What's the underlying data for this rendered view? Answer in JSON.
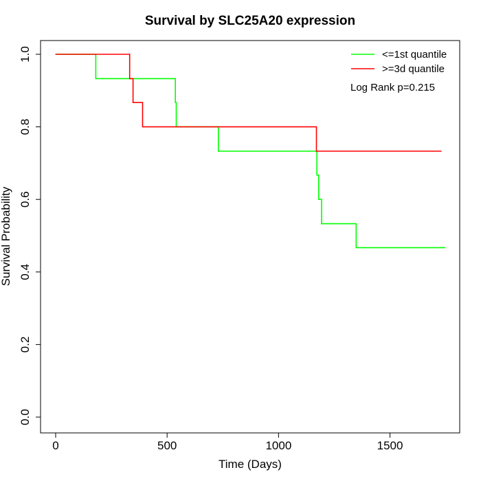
{
  "chart_data": {
    "type": "line",
    "title": "Survival by SLC25A20 expression",
    "xlabel": "Time (Days)",
    "ylabel": "Survival Probability",
    "xlim": [
      0,
      1800
    ],
    "ylim": [
      0,
      1.0
    ],
    "xticks": [
      {
        "value": 0,
        "label": "0"
      },
      {
        "value": 500,
        "label": "500"
      },
      {
        "value": 1000,
        "label": "1000"
      },
      {
        "value": 1500,
        "label": "1500"
      }
    ],
    "yticks": [
      {
        "value": 0.0,
        "label": "0.0"
      },
      {
        "value": 0.2,
        "label": "0.2"
      },
      {
        "value": 0.4,
        "label": "0.4"
      },
      {
        "value": 0.6,
        "label": "0.6"
      },
      {
        "value": 0.8,
        "label": "0.8"
      },
      {
        "value": 1.0,
        "label": "1.0"
      }
    ],
    "grid": false,
    "legend_position": "top-right",
    "annotation": "Log Rank p=0.215",
    "series": [
      {
        "name": "<=1st quantile",
        "color": "#00ff00",
        "step": true,
        "points": [
          [
            0,
            1.0
          ],
          [
            180,
            1.0
          ],
          [
            180,
            0.933
          ],
          [
            537,
            0.933
          ],
          [
            537,
            0.867
          ],
          [
            541,
            0.867
          ],
          [
            541,
            0.8
          ],
          [
            730,
            0.8
          ],
          [
            730,
            0.733
          ],
          [
            1172,
            0.733
          ],
          [
            1172,
            0.667
          ],
          [
            1180,
            0.667
          ],
          [
            1180,
            0.6
          ],
          [
            1193,
            0.6
          ],
          [
            1193,
            0.533
          ],
          [
            1348,
            0.533
          ],
          [
            1348,
            0.467
          ],
          [
            1748,
            0.467
          ]
        ]
      },
      {
        "name": ">=3d quantile",
        "color": "#ff0000",
        "step": true,
        "points": [
          [
            0,
            1.0
          ],
          [
            332,
            1.0
          ],
          [
            332,
            0.933
          ],
          [
            347,
            0.933
          ],
          [
            347,
            0.867
          ],
          [
            390,
            0.867
          ],
          [
            390,
            0.8
          ],
          [
            1170,
            0.8
          ],
          [
            1170,
            0.733
          ],
          [
            1730,
            0.733
          ]
        ]
      }
    ]
  }
}
